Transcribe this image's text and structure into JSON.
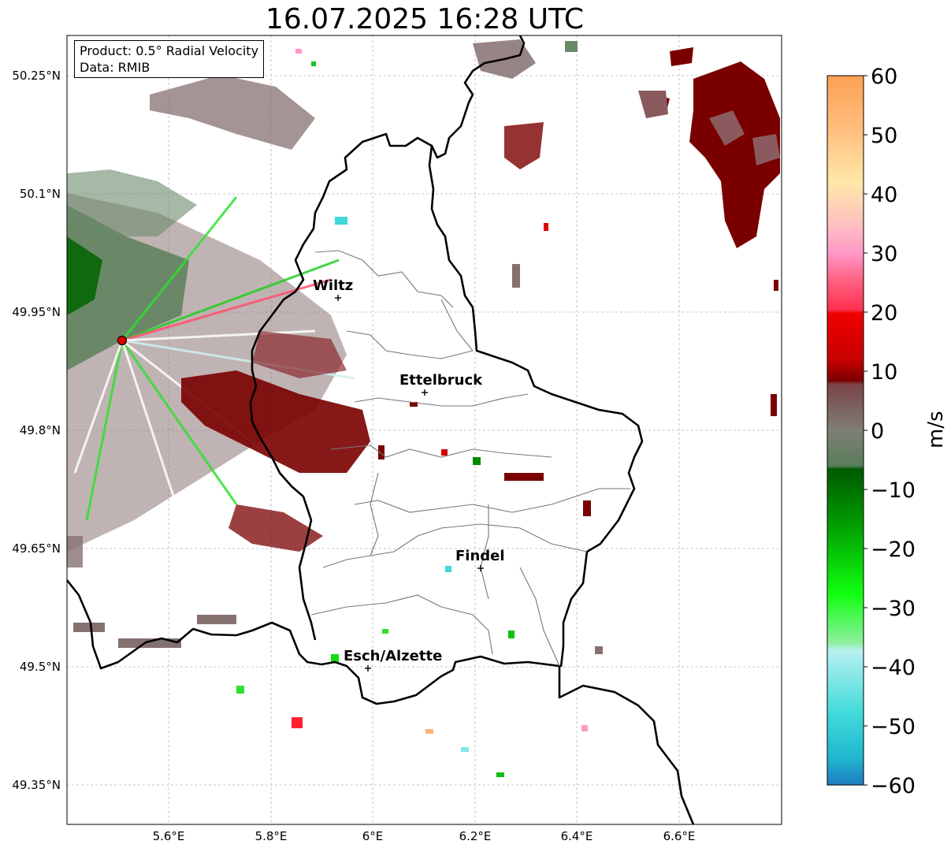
{
  "title": "16.07.2025 16:28 UTC",
  "info": {
    "product": "Product: 0.5° Radial Velocity",
    "data": "Data: RMIB"
  },
  "map": {
    "lat_ticks": [
      "50.25°N",
      "50.1°N",
      "49.95°N",
      "49.8°N",
      "49.65°N",
      "49.5°N",
      "49.35°N"
    ],
    "lon_ticks": [
      "5.6°E",
      "5.8°E",
      "6°E",
      "6.2°E",
      "6.4°E",
      "6.6°E"
    ],
    "cities": [
      {
        "name": "Wiltz"
      },
      {
        "name": "Ettelbruck"
      },
      {
        "name": "Findel"
      },
      {
        "name": "Esch/Alzette"
      }
    ],
    "radar_site_color": "#e00000"
  },
  "colorbar": {
    "label": "m/s",
    "ticks": [
      "60",
      "50",
      "40",
      "30",
      "20",
      "10",
      "0",
      "−10",
      "−20",
      "−30",
      "−40",
      "−50",
      "−60"
    ],
    "range": [
      -60,
      60
    ],
    "colors_top_to_bottom": [
      "#ffa055",
      "#ffb870",
      "#ffd090",
      "#ffe8a8",
      "#ffc0c0",
      "#ff98c8",
      "#ff6080",
      "#ff3050",
      "#f00000",
      "#d00000",
      "#a00000",
      "#7a0000",
      "#7c4448",
      "#846870",
      "#7e7e76",
      "#6a8a6a",
      "#4a7a4a",
      "#006400",
      "#008a00",
      "#00b000",
      "#00e000",
      "#30ff30",
      "#80f0a0",
      "#b0f0f0",
      "#80e8e8",
      "#40d8d8",
      "#20c0d0",
      "#1e80c0"
    ]
  }
}
